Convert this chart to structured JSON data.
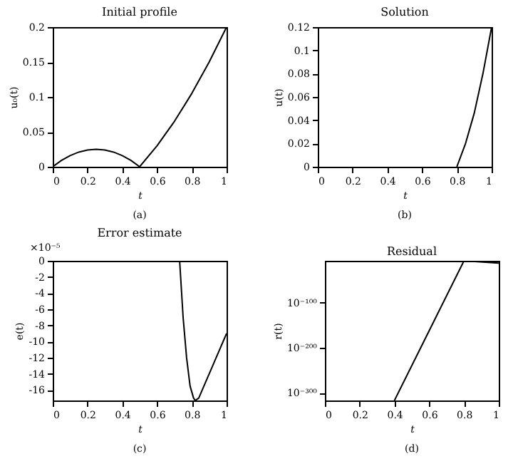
{
  "chart_data": [
    {
      "type": "line",
      "title": "Initial profile",
      "xlabel": "t",
      "ylabel": "u₀(t)",
      "annotations": [
        "(a)"
      ],
      "xlim": [
        0,
        1
      ],
      "xticks": [
        0,
        0.2,
        0.4,
        0.6,
        0.8,
        1
      ],
      "ylim": [
        0,
        0.2
      ],
      "yticks": [
        0,
        0.05,
        0.1,
        0.15,
        0.2
      ],
      "series": [
        {
          "color": "#000000",
          "x": [
            0,
            0.05,
            0.1,
            0.15,
            0.2,
            0.25,
            0.3,
            0.35,
            0.4,
            0.45,
            0.5,
            0.6,
            0.7,
            0.8,
            0.9,
            1
          ],
          "values": [
            0,
            0.009,
            0.016,
            0.021,
            0.024,
            0.025,
            0.024,
            0.021,
            0.016,
            0.009,
            0,
            0.03,
            0.065,
            0.105,
            0.15,
            0.2
          ]
        }
      ]
    },
    {
      "type": "line",
      "title": "Solution",
      "xlabel": "t",
      "ylabel": "u(t)",
      "annotations": [
        "(b)"
      ],
      "xlim": [
        0,
        1
      ],
      "xticks": [
        0,
        0.2,
        0.4,
        0.6,
        0.8,
        1
      ],
      "ylim": [
        0,
        0.12
      ],
      "yticks": [
        0,
        0.02,
        0.04,
        0.06,
        0.08,
        0.1,
        0.12
      ],
      "series": [
        {
          "color": "#000000",
          "x": [
            0.8,
            0.85,
            0.9,
            0.95,
            1
          ],
          "values": [
            0,
            0.02,
            0.046,
            0.08,
            0.12
          ]
        }
      ]
    },
    {
      "type": "line",
      "title": "Error estimate",
      "xlabel": "t",
      "ylabel": "e(t)",
      "annotations": [
        "(c)",
        "×10⁻⁵"
      ],
      "xlim": [
        0,
        1
      ],
      "xticks": [
        0,
        0.2,
        0.4,
        0.6,
        0.8,
        1
      ],
      "ylim": [
        -17.3,
        0
      ],
      "yticks": [
        -16,
        -14,
        -12,
        -10,
        -8,
        -6,
        -4,
        -2,
        0
      ],
      "series": [
        {
          "color": "#000000",
          "x": [
            0.73,
            0.75,
            0.77,
            0.79,
            0.81,
            0.82,
            0.84,
            0.88,
            0.92,
            0.96,
            1
          ],
          "values": [
            0,
            -7,
            -12,
            -15.5,
            -17,
            -17.3,
            -17,
            -15,
            -13,
            -11,
            -9
          ]
        }
      ]
    },
    {
      "type": "line",
      "title": "Residual",
      "xlabel": "t",
      "ylabel": "r(t)",
      "annotations": [
        "(d)"
      ],
      "log": "y",
      "xlim": [
        0,
        1
      ],
      "xticks": [
        0,
        0.2,
        0.4,
        0.6,
        0.8,
        1
      ],
      "ylim": [
        1e-317,
        1e-07
      ],
      "yticks": [
        {
          "value": 1e-300,
          "label": "10⁻³⁰⁰"
        },
        {
          "value": 1e-200,
          "label": "10⁻²⁰⁰"
        },
        {
          "value": 1e-100,
          "label": "10⁻¹⁰⁰"
        }
      ],
      "series": [
        {
          "color": "#000000",
          "x": [
            0.4,
            0.6,
            0.8,
            1
          ],
          "values": [
            1e-317,
            1e-162,
            1e-07,
            1e-12
          ]
        }
      ]
    }
  ]
}
